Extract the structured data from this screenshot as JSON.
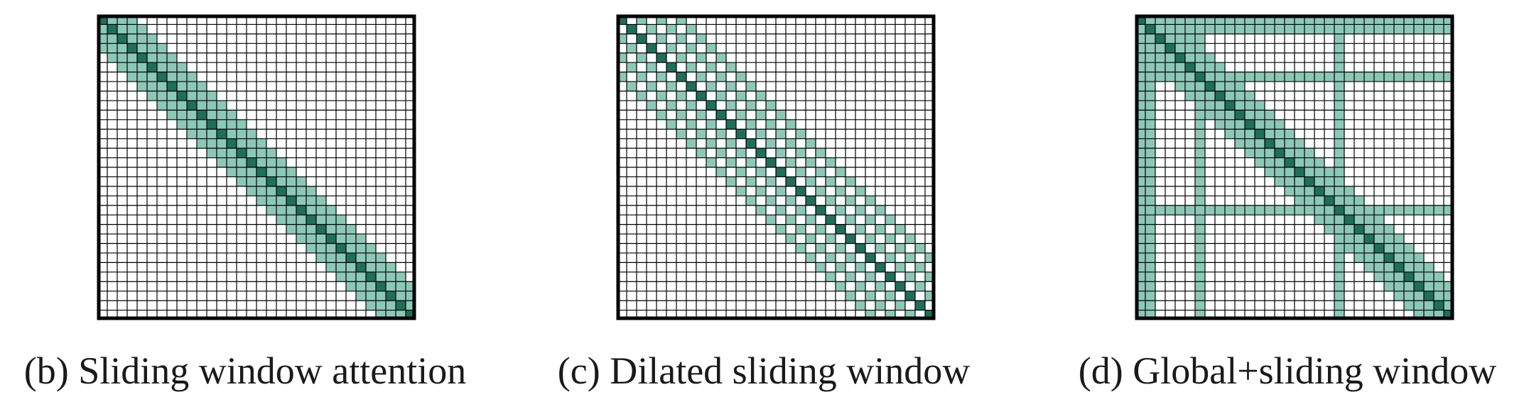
{
  "figure": {
    "grid_size": 32,
    "colors": {
      "diagonal": "#1f6e57",
      "attended": "#8cc8b6",
      "grid_line": "#000000",
      "empty": "#ffffff"
    }
  },
  "panels": [
    {
      "caption": "(b) Sliding window attention",
      "pattern": "sliding",
      "window_half_width": 3,
      "dilation": 1,
      "global_tokens": []
    },
    {
      "caption": "(c) Dilated sliding window",
      "pattern": "dilated",
      "window_half_width": 6,
      "dilation": 2,
      "global_tokens": []
    },
    {
      "caption": "(d) Global+sliding window",
      "pattern": "global_sliding",
      "window_half_width": 3,
      "dilation": 1,
      "global_tokens": [
        0,
        1,
        6,
        20
      ]
    }
  ]
}
